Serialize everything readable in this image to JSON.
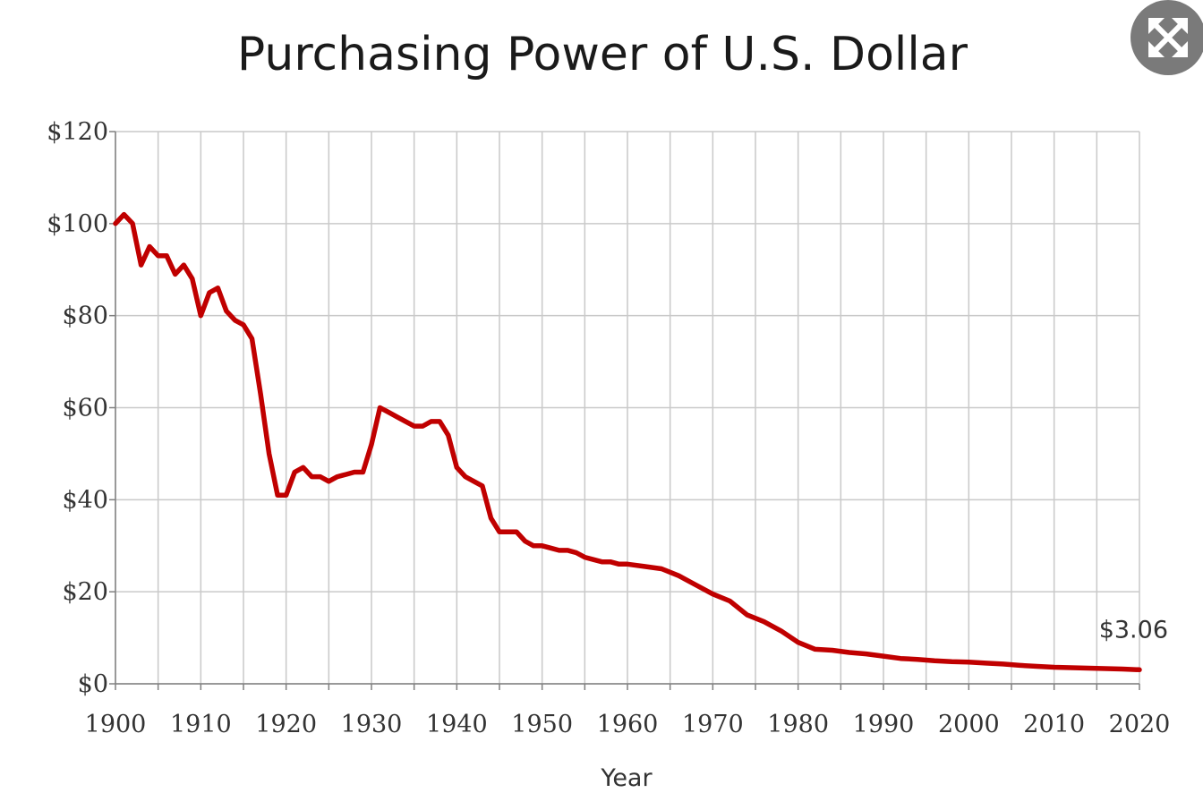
{
  "chart_data": {
    "type": "line",
    "title": "Purchasing Power of U.S. Dollar",
    "xlabel": "Year",
    "ylabel": "",
    "xlim": [
      1900,
      2020
    ],
    "ylim": [
      0,
      120
    ],
    "x_ticks": [
      1900,
      1910,
      1920,
      1930,
      1940,
      1950,
      1960,
      1970,
      1980,
      1990,
      2000,
      2010,
      2020
    ],
    "x_tick_labels": [
      "1900",
      "1910",
      "1920",
      "1930",
      "1940",
      "1950",
      "1960",
      "1970",
      "1980",
      "1990",
      "2000",
      "2010",
      "2020"
    ],
    "y_ticks": [
      0,
      20,
      40,
      60,
      80,
      100,
      120
    ],
    "y_tick_labels": [
      "$0",
      "$20",
      "$40",
      "$60",
      "$80",
      "$100",
      "$120"
    ],
    "grid": true,
    "legend": "none",
    "series": [
      {
        "color": "#c00000",
        "x": [
          1900,
          1901,
          1902,
          1903,
          1904,
          1905,
          1906,
          1907,
          1908,
          1909,
          1910,
          1911,
          1912,
          1913,
          1914,
          1915,
          1916,
          1917,
          1918,
          1919,
          1920,
          1921,
          1922,
          1923,
          1924,
          1925,
          1926,
          1927,
          1928,
          1929,
          1930,
          1931,
          1932,
          1933,
          1934,
          1935,
          1936,
          1937,
          1938,
          1939,
          1940,
          1941,
          1942,
          1943,
          1944,
          1945,
          1946,
          1947,
          1948,
          1949,
          1950,
          1951,
          1952,
          1953,
          1954,
          1955,
          1956,
          1957,
          1958,
          1959,
          1960,
          1962,
          1964,
          1966,
          1968,
          1970,
          1972,
          1974,
          1976,
          1978,
          1980,
          1982,
          1984,
          1986,
          1988,
          1990,
          1992,
          1994,
          1996,
          1998,
          2000,
          2002,
          2004,
          2006,
          2008,
          2010,
          2012,
          2014,
          2016,
          2018,
          2020
        ],
        "y": [
          100,
          102,
          100,
          91,
          95,
          93,
          93,
          89,
          91,
          88,
          80,
          85,
          86,
          81,
          79,
          78,
          75,
          63,
          50,
          41,
          41,
          46,
          47,
          45,
          45,
          44,
          45,
          45.5,
          46,
          46,
          52,
          60,
          59,
          58,
          57,
          56,
          56,
          57,
          57,
          54,
          47,
          45,
          44,
          43,
          36,
          33,
          33,
          33,
          31,
          30,
          30,
          29.5,
          29,
          29,
          28.5,
          27.5,
          27,
          26.5,
          26.5,
          26,
          26,
          25.5,
          25,
          23.5,
          21.5,
          19.5,
          18,
          15,
          13.5,
          11.5,
          9,
          7.5,
          7.3,
          6.8,
          6.5,
          6,
          5.5,
          5.3,
          5,
          4.8,
          4.7,
          4.5,
          4.3,
          4,
          3.8,
          3.6,
          3.5,
          3.4,
          3.3,
          3.2,
          3.06
        ]
      }
    ],
    "annotations": [
      {
        "text": "$3.06",
        "x": 2020,
        "y": 3.06
      }
    ]
  },
  "ui": {
    "expand_icon": "expand-arrows-icon"
  }
}
